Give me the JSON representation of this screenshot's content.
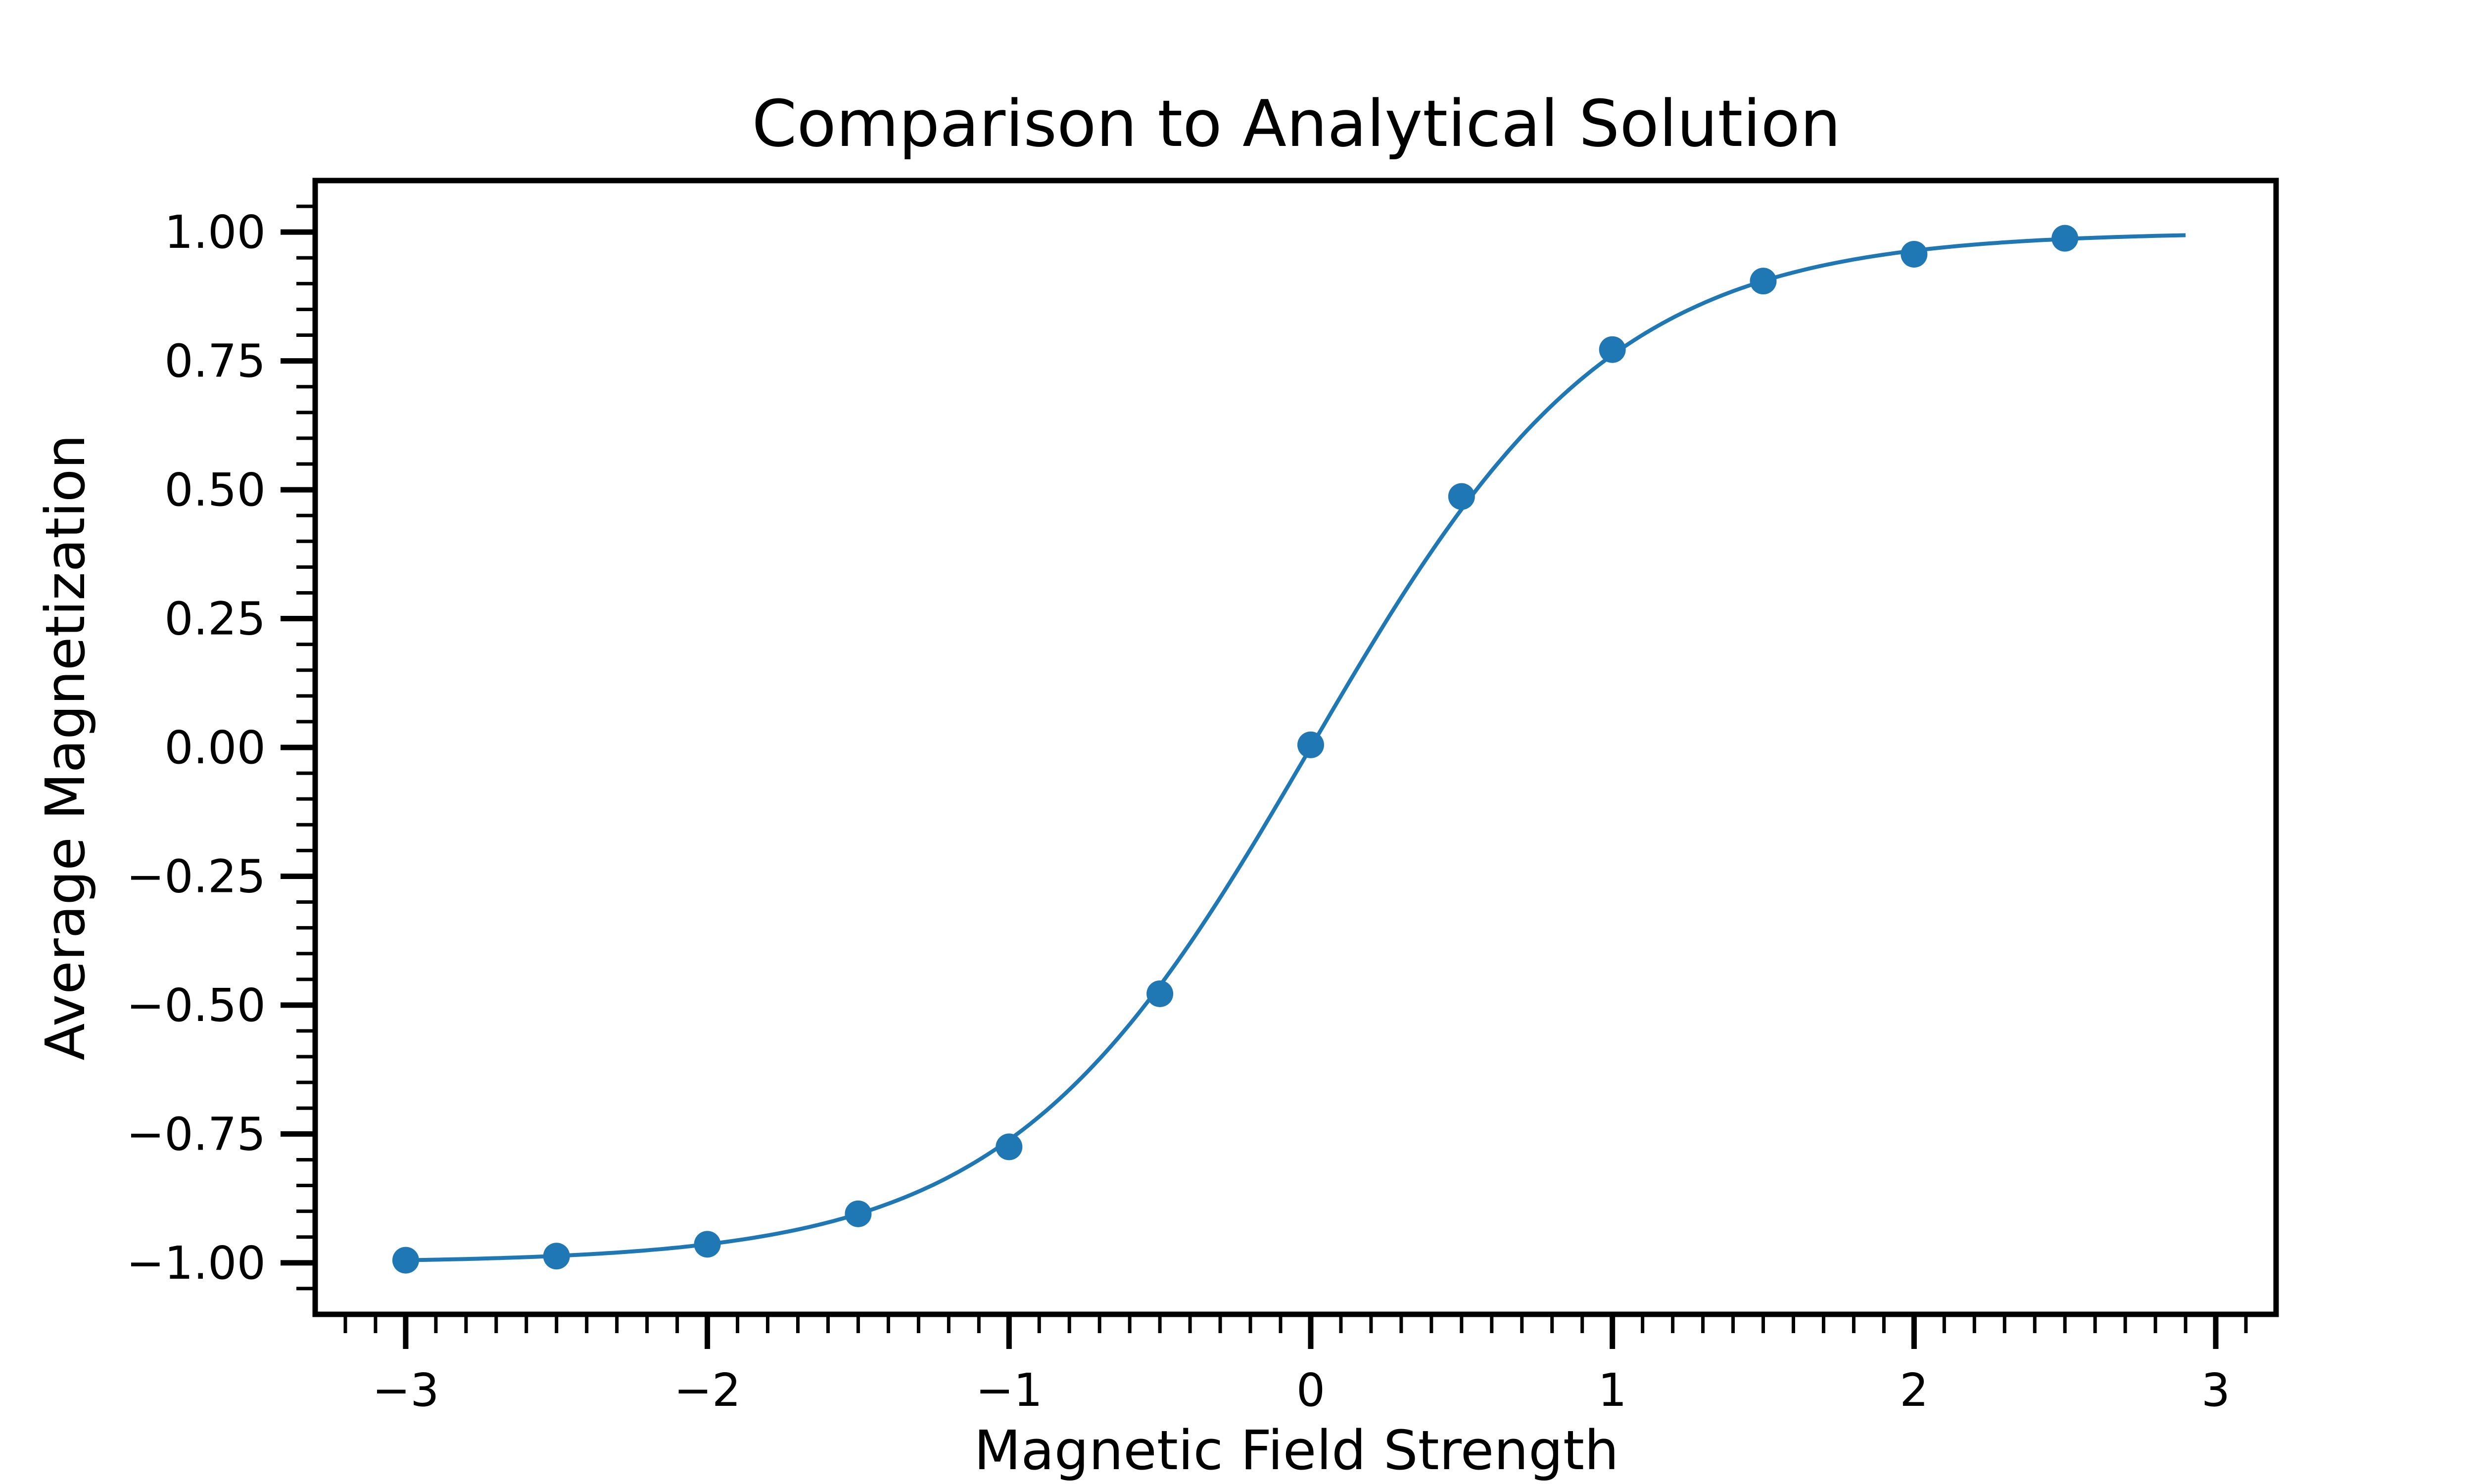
{
  "chart_data": {
    "type": "line",
    "title": "Comparison to Analytical Solution",
    "xlabel": "Magnetic Field Strength",
    "ylabel": "Average Magnetization",
    "xlim": [
      -3.3,
      3.2
    ],
    "ylim": [
      -1.1,
      1.1
    ],
    "grid": false,
    "legend": "none",
    "x_ticks": [
      -3,
      -2,
      -1,
      0,
      1,
      2,
      3
    ],
    "x_tick_labels": [
      "−3",
      "−2",
      "−1",
      "0",
      "1",
      "2",
      "3"
    ],
    "y_ticks": [
      -1.0,
      -0.75,
      -0.5,
      -0.25,
      0.0,
      0.25,
      0.5,
      0.75,
      1.0
    ],
    "y_tick_labels": [
      "−1.00",
      "−0.75",
      "−0.50",
      "−0.25",
      "0.00",
      "0.25",
      "0.50",
      "0.75",
      "1.00"
    ],
    "series": [
      {
        "kind": "line",
        "color": "#1f77b4",
        "x_range": [
          -3.0,
          2.9
        ],
        "function": "tanh"
      },
      {
        "kind": "scatter",
        "color": "#1f77b4",
        "x": [
          -3.0,
          -2.5,
          -2.0,
          -1.5,
          -1.0,
          -0.5,
          0.0,
          0.5,
          1.0,
          1.5,
          2.0,
          2.5
        ],
        "y": [
          -0.995,
          -0.987,
          -0.964,
          -0.905,
          -0.775,
          -0.478,
          0.005,
          0.487,
          0.772,
          0.905,
          0.957,
          0.988
        ]
      }
    ]
  }
}
